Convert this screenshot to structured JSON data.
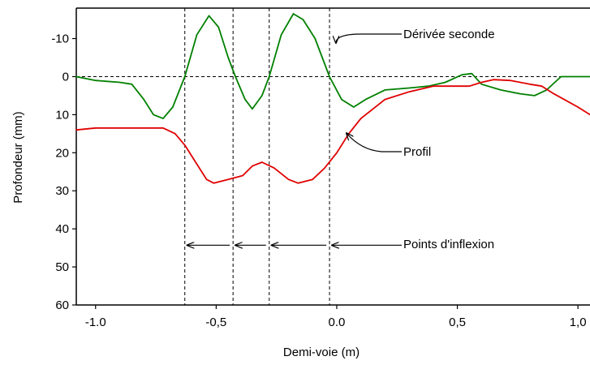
{
  "chart_data": {
    "type": "line",
    "title": "",
    "xlabel": "Demi-voie (m)",
    "ylabel": "Profondeur  (mm)",
    "xlim": [
      -1.08,
      1.05
    ],
    "ylim": [
      60,
      -18
    ],
    "y_inverted": true,
    "x_ticks": [
      -1.0,
      -0.5,
      0.0,
      0.5,
      1.0
    ],
    "x_tick_labels": [
      "-1.0",
      "-0,5",
      "0.0",
      "0,5",
      "1,0"
    ],
    "y_ticks": [
      -10,
      0,
      10,
      20,
      30,
      40,
      50,
      60
    ],
    "y_tick_labels": [
      "-10",
      "0",
      "10",
      "20",
      "30",
      "40",
      "50",
      "60"
    ],
    "reference_line_y": 0,
    "inflection_x": [
      -0.63,
      -0.43,
      -0.28,
      -0.03
    ],
    "series": [
      {
        "name": "Dérivée seconde",
        "color": "#008000",
        "points": [
          [
            -1.08,
            0
          ],
          [
            -1.0,
            1
          ],
          [
            -0.9,
            1.5
          ],
          [
            -0.85,
            2
          ],
          [
            -0.8,
            6
          ],
          [
            -0.76,
            10
          ],
          [
            -0.72,
            11
          ],
          [
            -0.68,
            8
          ],
          [
            -0.63,
            0
          ],
          [
            -0.58,
            -11
          ],
          [
            -0.53,
            -16
          ],
          [
            -0.49,
            -13
          ],
          [
            -0.45,
            -5
          ],
          [
            -0.42,
            0
          ],
          [
            -0.38,
            6
          ],
          [
            -0.35,
            8.5
          ],
          [
            -0.31,
            5
          ],
          [
            -0.28,
            0
          ],
          [
            -0.23,
            -11
          ],
          [
            -0.18,
            -16.5
          ],
          [
            -0.14,
            -15
          ],
          [
            -0.09,
            -10
          ],
          [
            -0.03,
            0
          ],
          [
            0.02,
            6
          ],
          [
            0.07,
            8
          ],
          [
            0.12,
            6
          ],
          [
            0.2,
            3.5
          ],
          [
            0.3,
            3
          ],
          [
            0.38,
            2.5
          ],
          [
            0.45,
            1.5
          ],
          [
            0.52,
            -0.5
          ],
          [
            0.56,
            -0.8
          ],
          [
            0.6,
            2
          ],
          [
            0.68,
            3.5
          ],
          [
            0.76,
            4.5
          ],
          [
            0.82,
            5
          ],
          [
            0.87,
            3.5
          ],
          [
            0.93,
            0
          ],
          [
            1.05,
            0
          ]
        ]
      },
      {
        "name": "Profil",
        "color": "#e00000",
        "points": [
          [
            -1.08,
            14
          ],
          [
            -1.0,
            13.5
          ],
          [
            -0.85,
            13.5
          ],
          [
            -0.72,
            13.5
          ],
          [
            -0.67,
            15
          ],
          [
            -0.63,
            18
          ],
          [
            -0.58,
            23
          ],
          [
            -0.54,
            27
          ],
          [
            -0.51,
            28
          ],
          [
            -0.45,
            27
          ],
          [
            -0.39,
            26
          ],
          [
            -0.35,
            23.5
          ],
          [
            -0.31,
            22.5
          ],
          [
            -0.26,
            24
          ],
          [
            -0.2,
            27
          ],
          [
            -0.16,
            28
          ],
          [
            -0.1,
            27
          ],
          [
            -0.05,
            24
          ],
          [
            0.0,
            20
          ],
          [
            0.05,
            15
          ],
          [
            0.1,
            11
          ],
          [
            0.2,
            6
          ],
          [
            0.3,
            4
          ],
          [
            0.4,
            2.5
          ],
          [
            0.5,
            2.5
          ],
          [
            0.55,
            2.5
          ],
          [
            0.6,
            1.5
          ],
          [
            0.65,
            0.8
          ],
          [
            0.72,
            1
          ],
          [
            0.8,
            2
          ],
          [
            0.85,
            2.5
          ],
          [
            0.9,
            4.5
          ],
          [
            1.0,
            8
          ],
          [
            1.05,
            10
          ]
        ]
      }
    ],
    "annotations": [
      {
        "text": "Dérivée seconde",
        "arrow_to": [
          -0.01,
          -8
        ]
      },
      {
        "text": "Profil",
        "arrow_to": [
          0.03,
          14
        ]
      },
      {
        "text": "Points d'inflexion"
      }
    ],
    "grid": false,
    "legend": "none"
  }
}
